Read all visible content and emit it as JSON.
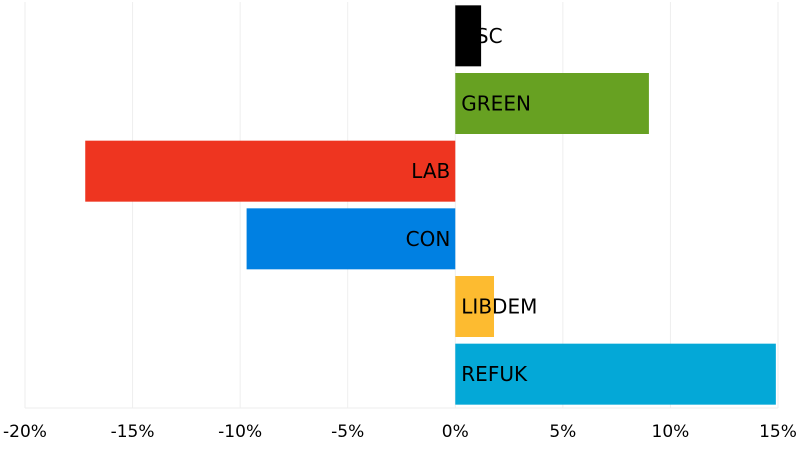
{
  "chart_data": {
    "type": "bar",
    "orientation": "horizontal",
    "title": "",
    "xlabel": "",
    "ylabel": "",
    "categories": [
      "USC",
      "GREEN",
      "LAB",
      "CON",
      "LIBDEM",
      "REFUK"
    ],
    "values": [
      1.2,
      9.0,
      -17.2,
      -9.7,
      1.8,
      14.9
    ],
    "colors": [
      "#000000",
      "#67a122",
      "#ee3520",
      "#0080e2",
      "#fdbb30",
      "#04a8d7"
    ],
    "xlim": [
      -20,
      15
    ],
    "xticks": [
      -20,
      -15,
      -10,
      -5,
      0,
      5,
      10,
      15
    ],
    "xtick_labels": [
      "-20%",
      "-15%",
      "-10%",
      "-5%",
      "0%",
      "5%",
      "10%",
      "15%"
    ],
    "grid": "vertical",
    "legend": "none"
  }
}
